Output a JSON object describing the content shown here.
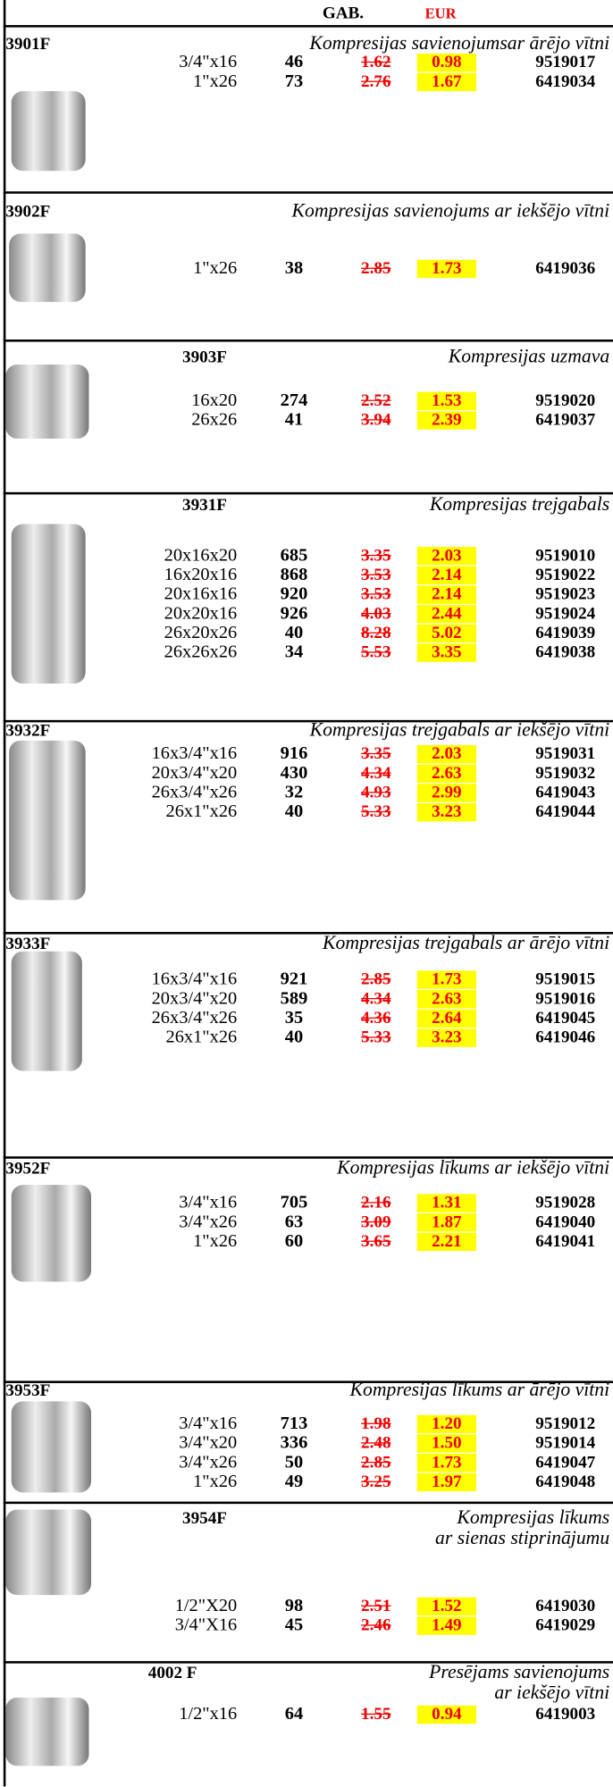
{
  "header": {
    "qty_label": "GAB.",
    "currency": "EUR"
  },
  "sections": [
    {
      "code": "3901F",
      "title": [
        "Kompresijas savienojumsar ārējo vītni"
      ],
      "rows": [
        [
          "3/4\"x16",
          "46",
          "1.62",
          "0.98",
          "9519017"
        ],
        [
          "1\"x26",
          "73",
          "2.76",
          "1.67",
          "6419034"
        ]
      ]
    },
    {
      "code": "3902F",
      "title": [
        "Kompresijas savienojums ar iekšējo vītni"
      ],
      "rows": [
        [
          "1\"x26",
          "38",
          "2.85",
          "1.73",
          "6419036"
        ]
      ]
    },
    {
      "code": "3903F",
      "title": [
        "Kompresijas uzmava"
      ],
      "rows": [
        [
          "16x20",
          "274",
          "2.52",
          "1.53",
          "9519020"
        ],
        [
          "26x26",
          "41",
          "3.94",
          "2.39",
          "6419037"
        ]
      ]
    },
    {
      "code": "3931F",
      "title": [
        "Kompresijas trejgabals"
      ],
      "rows": [
        [
          "20x16x20",
          "685",
          "3.35",
          "2.03",
          "9519010"
        ],
        [
          "16x20x16",
          "868",
          "3.53",
          "2.14",
          "9519022"
        ],
        [
          "20x16x16",
          "920",
          "3.53",
          "2.14",
          "9519023"
        ],
        [
          "20x20x16",
          "926",
          "4.03",
          "2.44",
          "9519024"
        ],
        [
          "26x20x26",
          "40",
          "8.28",
          "5.02",
          "6419039"
        ],
        [
          "26x26x26",
          "34",
          "5.53",
          "3.35",
          "6419038"
        ]
      ]
    },
    {
      "code": "3932F",
      "title": [
        "Kompresijas trejgabals ar iekšējo vītni"
      ],
      "rows": [
        [
          "16x3/4\"x16",
          "916",
          "3.35",
          "2.03",
          "9519031"
        ],
        [
          "20x3/4\"x20",
          "430",
          "4.34",
          "2.63",
          "9519032"
        ],
        [
          "26x3/4\"x26",
          "32",
          "4.93",
          "2.99",
          "6419043"
        ],
        [
          "26x1\"x26",
          "40",
          "5.33",
          "3.23",
          "6419044"
        ]
      ]
    },
    {
      "code": "3933F",
      "title": [
        "Kompresijas trejgabals ar ārējo vītni"
      ],
      "rows": [
        [
          "16x3/4\"x16",
          "921",
          "2.85",
          "1.73",
          "9519015"
        ],
        [
          "20x3/4\"x20",
          "589",
          "4.34",
          "2.63",
          "9519016"
        ],
        [
          "26x3/4\"x26",
          "35",
          "4.36",
          "2.64",
          "6419045"
        ],
        [
          "26x1\"x26",
          "40",
          "5.33",
          "3.23",
          "6419046"
        ]
      ]
    },
    {
      "code": "3952F",
      "title": [
        "Kompresijas līkums ar iekšējo vītni"
      ],
      "rows": [
        [
          "3/4\"x16",
          "705",
          "2.16",
          "1.31",
          "9519028"
        ],
        [
          "3/4\"x26",
          "63",
          "3.09",
          "1.87",
          "6419040"
        ],
        [
          "1\"x26",
          "60",
          "3.65",
          "2.21",
          "6419041"
        ]
      ]
    },
    {
      "code": "3953F",
      "title": [
        "Kompresijas līkums ar ārējo vītni"
      ],
      "rows": [
        [
          "3/4\"x16",
          "713",
          "1.98",
          "1.20",
          "9519012"
        ],
        [
          "3/4\"x20",
          "336",
          "2.48",
          "1.50",
          "9519014"
        ],
        [
          "3/4\"x26",
          "50",
          "2.85",
          "1.73",
          "6419047"
        ],
        [
          "1\"x26",
          "49",
          "3.25",
          "1.97",
          "6419048"
        ]
      ]
    },
    {
      "code": "3954F",
      "title": [
        "Kompresijas līkums",
        "ar sienas stiprinājumu"
      ],
      "rows": [
        [
          "1/2\"X20",
          "98",
          "2.51",
          "1.52",
          "6419030"
        ],
        [
          "3/4\"X16",
          "45",
          "2.46",
          "1.49",
          "6419029"
        ]
      ]
    },
    {
      "code": "4002 F",
      "title": [
        "Presējams savienojums",
        "ar iekšējo vītni"
      ],
      "rows": [
        [
          "1/2\"x16",
          "64",
          "1.55",
          "0.94",
          "6419003"
        ]
      ]
    }
  ]
}
